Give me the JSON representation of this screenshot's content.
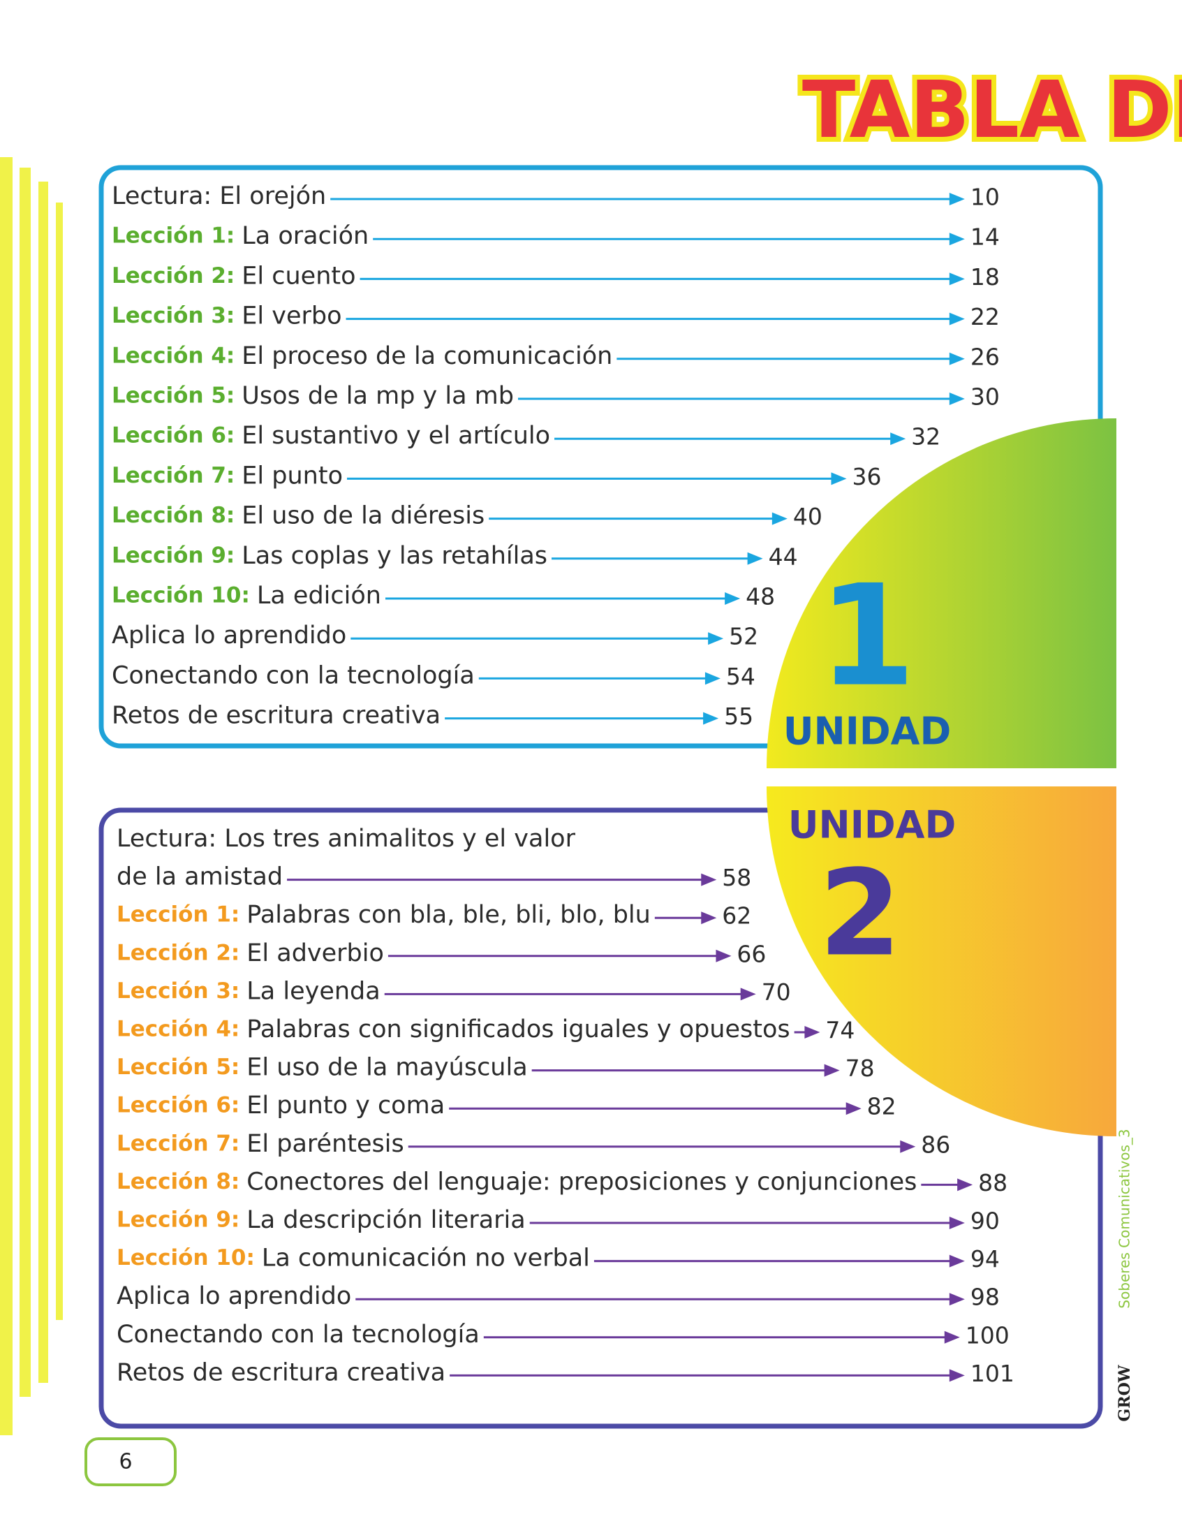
{
  "header": {
    "title": "TABLA DE"
  },
  "units": [
    {
      "badge": {
        "number": "1",
        "label": "UNIDAD"
      },
      "entries": [
        {
          "text": "Lectura: El orejón",
          "page": 10
        },
        {
          "lesson": "Lección 1:",
          "text": "La oración",
          "page": 14
        },
        {
          "lesson": "Lección 2:",
          "text": "El cuento",
          "page": 18
        },
        {
          "lesson": "Lección 3:",
          "text": "El verbo",
          "page": 22
        },
        {
          "lesson": "Lección 4:",
          "text": "El proceso de la comunicación",
          "page": 26
        },
        {
          "lesson": "Lección 5:",
          "text": "Usos de la mp y la mb",
          "page": 30
        },
        {
          "lesson": "Lección 6:",
          "text": "El sustantivo y el artículo",
          "page": 32
        },
        {
          "lesson": "Lección 7:",
          "text": "El punto",
          "page": 36
        },
        {
          "lesson": "Lección 8:",
          "text": "El uso de la diéresis",
          "page": 40
        },
        {
          "lesson": "Lección 9:",
          "text": "Las coplas y las retahílas",
          "page": 44
        },
        {
          "lesson": "Lección 10:",
          "text": "La edición",
          "page": 48
        },
        {
          "text": "Aplica lo aprendido",
          "page": 52
        },
        {
          "text": "Conectando con la tecnología",
          "page": 54
        },
        {
          "text": "Retos de escritura creativa",
          "page": 55
        }
      ]
    },
    {
      "badge": {
        "number": "2",
        "label": "UNIDAD"
      },
      "entries": [
        {
          "lines": [
            "Lectura: Los tres animalitos y el valor",
            "de la amistad"
          ],
          "page": 58
        },
        {
          "lesson": "Lección 1:",
          "text": "Palabras con bla, ble, bli, blo, blu",
          "page": 62
        },
        {
          "lesson": "Lección 2:",
          "text": "El adverbio",
          "page": 66
        },
        {
          "lesson": "Lección 3:",
          "text": "La leyenda",
          "page": 70
        },
        {
          "lesson": "Lección 4:",
          "text": "Palabras con significados iguales y opuestos",
          "page": 74
        },
        {
          "lesson": "Lección 5:",
          "text": "El uso de la mayúscula",
          "page": 78
        },
        {
          "lesson": "Lección 6:",
          "text": "El punto y coma",
          "page": 82
        },
        {
          "lesson": "Lección 7:",
          "text": "El paréntesis",
          "page": 86
        },
        {
          "lesson": "Lección 8:",
          "text": "Conectores del lenguaje: preposiciones y conjunciones",
          "page": 88
        },
        {
          "lesson": "Lección 9:",
          "text": "La descripción literaria",
          "page": 90
        },
        {
          "lesson": "Lección 10:",
          "text": "La comunicación no verbal",
          "page": 94
        },
        {
          "text": "Aplica lo aprendido",
          "page": 98
        },
        {
          "text": "Conectando con la tecnología",
          "page": 100
        },
        {
          "text": "Retos de escritura creativa",
          "page": 101
        }
      ]
    }
  ],
  "footer": {
    "page_number": "6",
    "series": "Soberes Comunicativos_3",
    "brand": "GROW"
  }
}
